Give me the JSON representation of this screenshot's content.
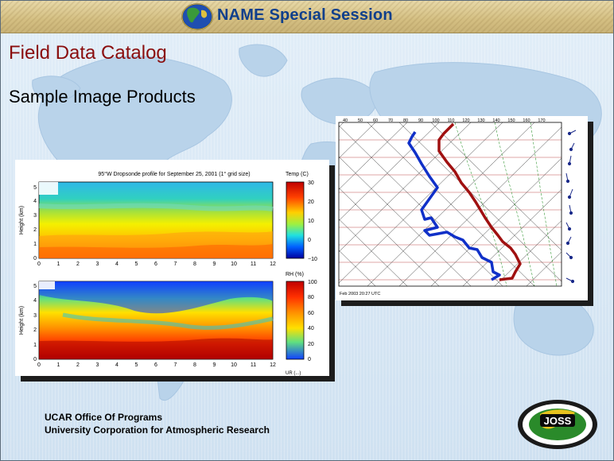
{
  "header": {
    "title": "NAME Special Session"
  },
  "page": {
    "title": "Field Data Catalog",
    "subtitle": "Sample Image Products"
  },
  "left_figure": {
    "title": "95°W Dropsonde profile for September 25, 2001  (1° grid size)",
    "y_label": "Height (km)",
    "x_ticks": [
      "0",
      "1",
      "2",
      "3",
      "4",
      "5",
      "6",
      "7",
      "8",
      "9",
      "10",
      "11",
      "12"
    ],
    "y_ticks": [
      "0",
      "1",
      "2",
      "3",
      "4",
      "5"
    ],
    "temp_label": "Temp (C)",
    "temp_ticks": [
      "30",
      "20",
      "10",
      "0",
      "−10"
    ],
    "rh_label": "RH (%)",
    "rh_ticks": [
      "100",
      "80",
      "60",
      "40",
      "20",
      "0"
    ],
    "footer_fragment": "UR (...)"
  },
  "right_figure": {
    "top_ticks": [
      "40",
      "50",
      "60",
      "70",
      "80",
      "90",
      "100",
      "110",
      "120",
      "130",
      "140",
      "150",
      "160",
      "170"
    ],
    "caption": "Feb 2003  20:27 UTC"
  },
  "footer": {
    "line1": "UCAR Office Of Programs",
    "line2": "University Corporation for Atmospheric Research"
  },
  "logo": {
    "text": "JOSS",
    "ring_text": "Joint Office for Science Support / UCAR"
  },
  "colors": {
    "title_red": "#8a0d0d",
    "header_blue": "#0f3f8c",
    "dew_line": "#1030c8",
    "temp_line": "#a01010"
  }
}
